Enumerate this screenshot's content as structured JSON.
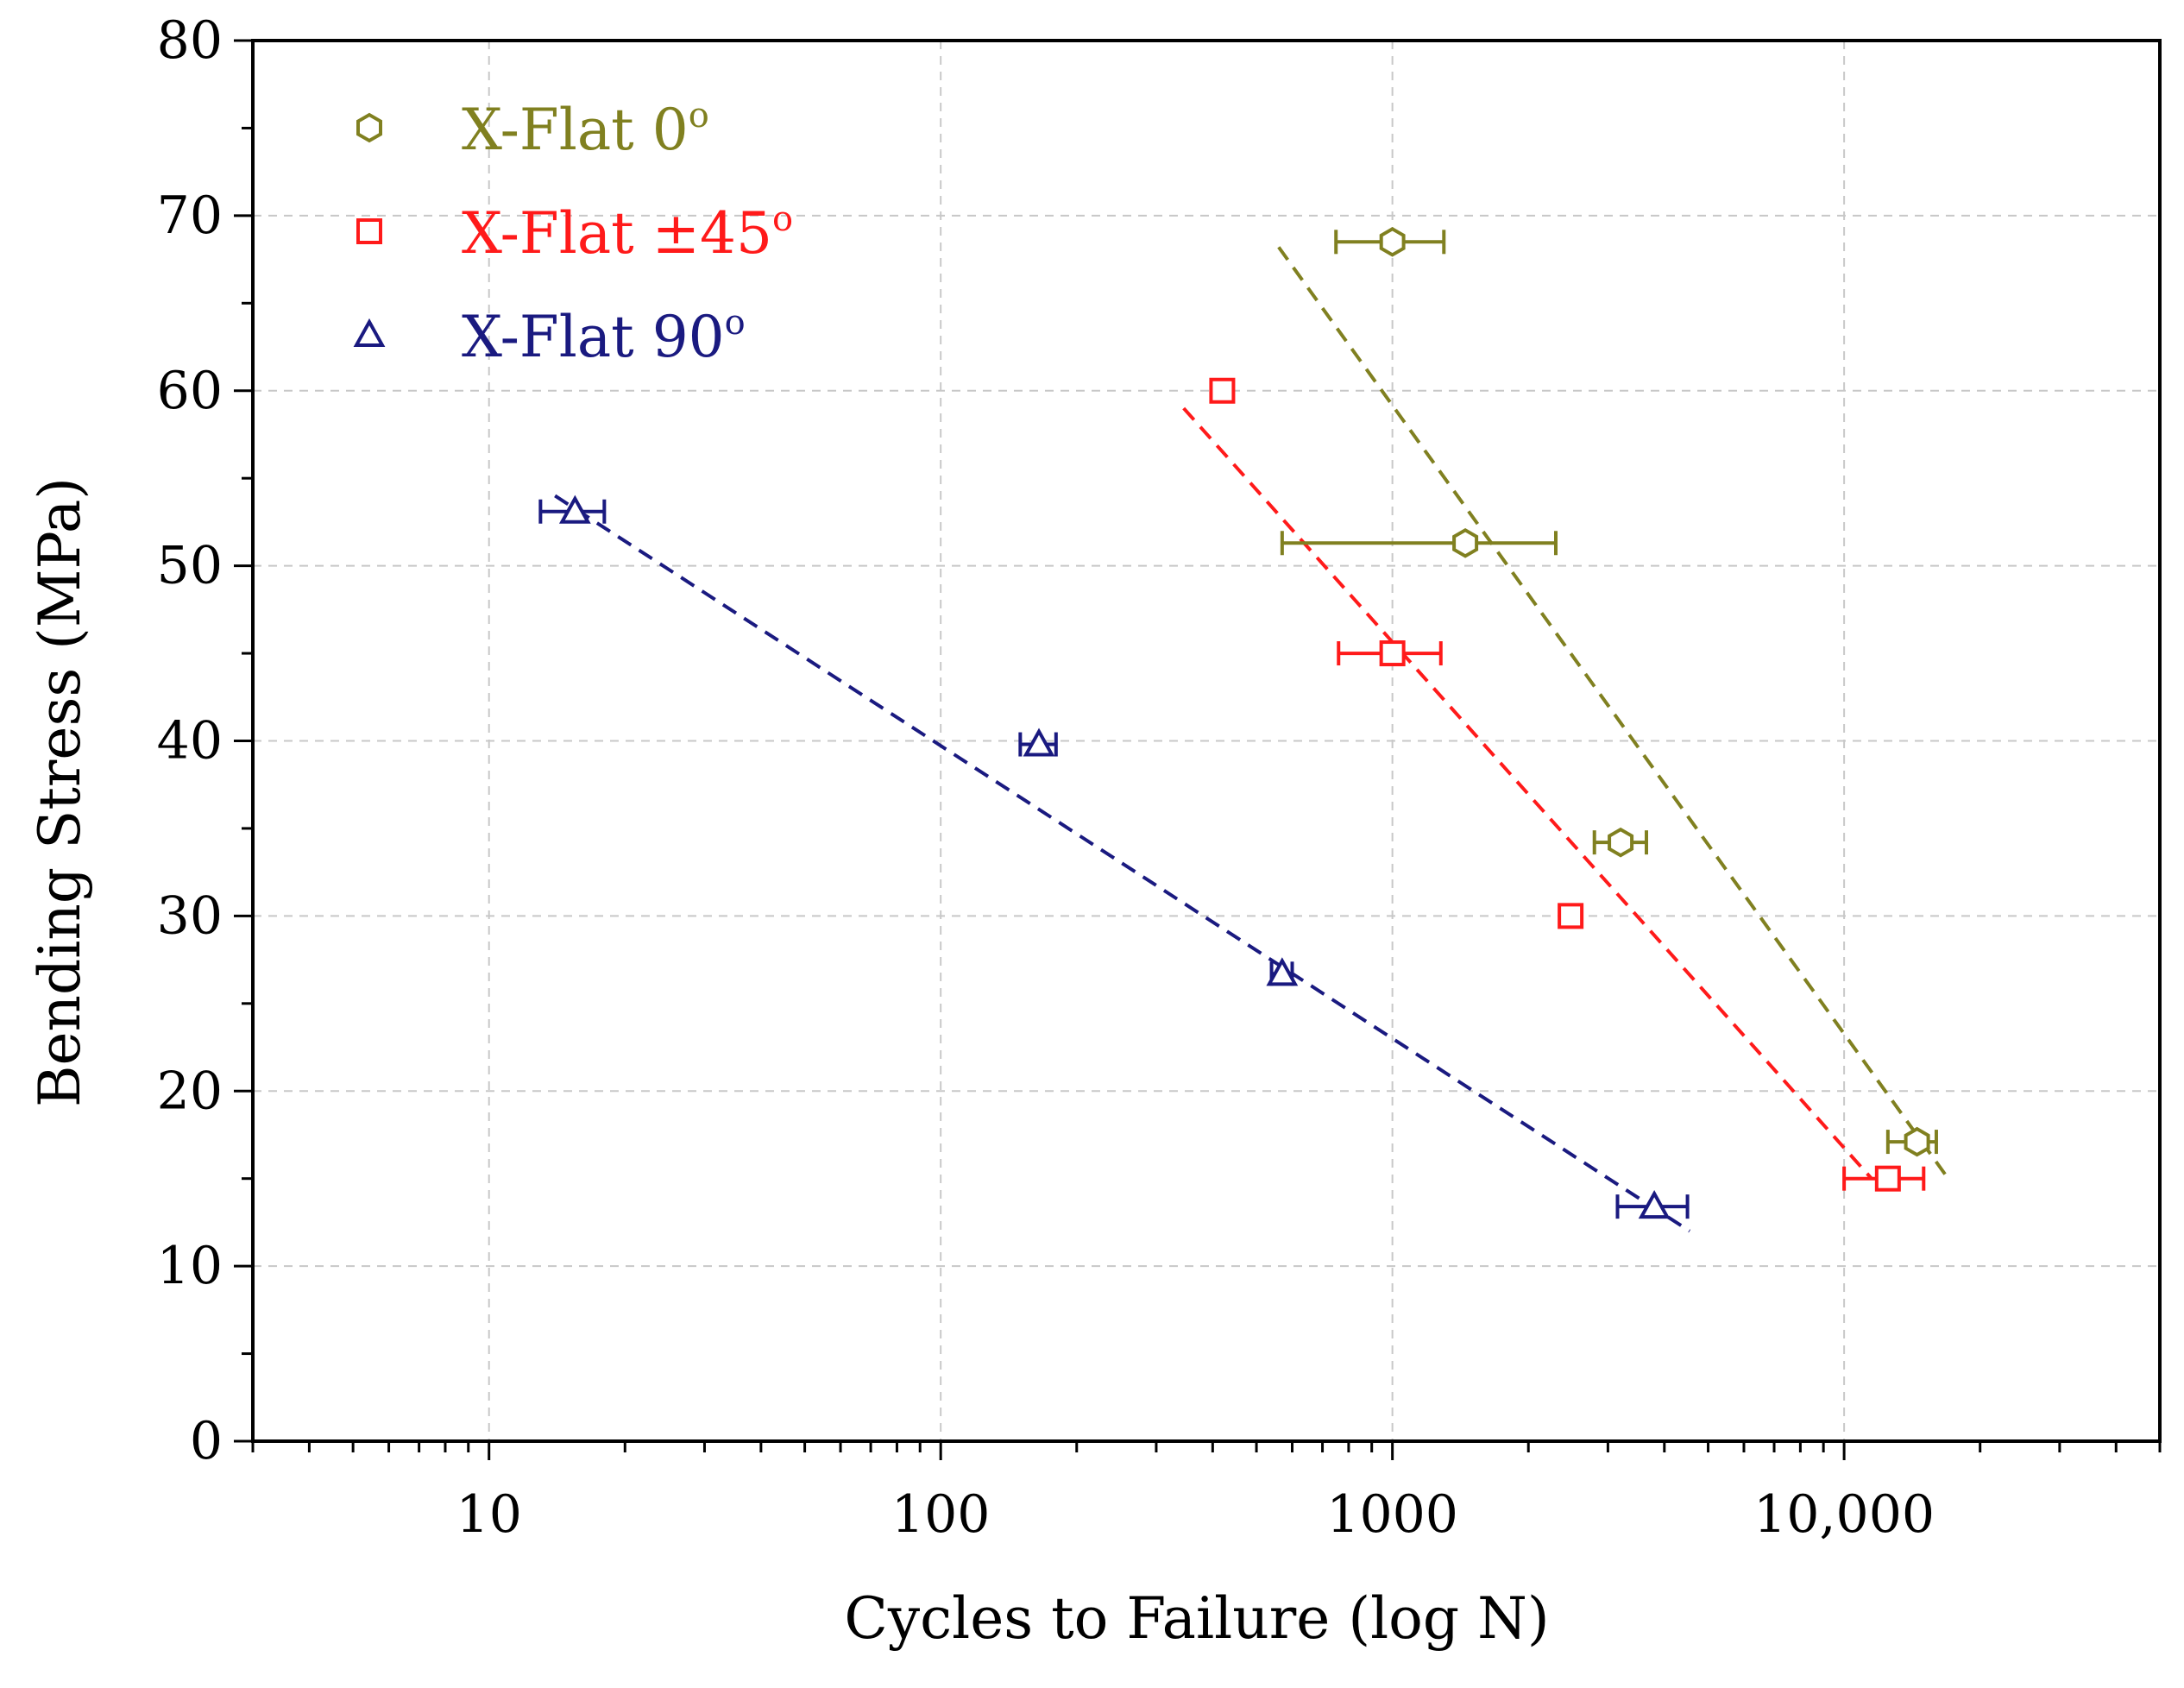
{
  "chart_data": {
    "type": "scatter",
    "title": "",
    "xlabel": "Cycles to Failure (log N)",
    "ylabel": "Bending Stress (MPa)",
    "xscale": "log",
    "xlim": [
      3,
      50000
    ],
    "ylim": [
      0,
      80
    ],
    "grid": true,
    "legend_position": "top-left",
    "x_ticks": [
      {
        "value": 10,
        "label": "10"
      },
      {
        "value": 100,
        "label": "100"
      },
      {
        "value": 1000,
        "label": "1000"
      },
      {
        "value": 10000,
        "label": "10,000"
      }
    ],
    "y_ticks": [
      {
        "value": 0,
        "label": "0"
      },
      {
        "value": 10,
        "label": "10"
      },
      {
        "value": 20,
        "label": "20"
      },
      {
        "value": 30,
        "label": "30"
      },
      {
        "value": 40,
        "label": "40"
      },
      {
        "value": 50,
        "label": "50"
      },
      {
        "value": 60,
        "label": "60"
      },
      {
        "value": 70,
        "label": "70"
      },
      {
        "value": 80,
        "label": "80"
      }
    ],
    "series": [
      {
        "name": "X-Flat 0°",
        "legend_main": "X-Flat 0",
        "legend_sup": "o",
        "marker": "hexagon",
        "color": "#808020",
        "points": [
          {
            "x": 1000,
            "y": 68.5,
            "xerr": [
              750,
              1300
            ]
          },
          {
            "x": 1450,
            "y": 51.3,
            "xerr": [
              570,
              2300
            ]
          },
          {
            "x": 3200,
            "y": 34.2,
            "xerr": [
              2800,
              3650
            ]
          },
          {
            "x": 14500,
            "y": 17.1,
            "xerr": [
              12500,
              16000
            ]
          }
        ],
        "fit": [
          {
            "x": 560,
            "y": 68.2
          },
          {
            "x": 17000,
            "y": 15.0
          }
        ]
      },
      {
        "name": "X-Flat ±45°",
        "legend_main": "X-Flat ±45",
        "legend_sup": "o",
        "marker": "square",
        "color": "#ff1a1a",
        "points": [
          {
            "x": 420,
            "y": 60.0,
            "xerr": [
              405,
              435
            ]
          },
          {
            "x": 1000,
            "y": 45.0,
            "xerr": [
              760,
              1280
            ]
          },
          {
            "x": 2480,
            "y": 30.0,
            "xerr": [
              2400,
              2560
            ]
          },
          {
            "x": 12500,
            "y": 15.0,
            "xerr": [
              10000,
              15000
            ]
          }
        ],
        "fit": [
          {
            "x": 345,
            "y": 59.0
          },
          {
            "x": 11500,
            "y": 15.0
          }
        ]
      },
      {
        "name": "X-Flat 90°",
        "legend_main": "X-Flat 90",
        "legend_sup": "o",
        "marker": "triangle",
        "color": "#1a1a80",
        "points": [
          {
            "x": 15.5,
            "y": 53.1,
            "xerr": [
              13,
              18
            ]
          },
          {
            "x": 165,
            "y": 39.8,
            "xerr": [
              150,
              180
            ]
          },
          {
            "x": 570,
            "y": 26.7,
            "xerr": [
              540,
              600
            ]
          },
          {
            "x": 3800,
            "y": 13.4,
            "xerr": [
              3150,
              4500
            ]
          }
        ],
        "fit": [
          {
            "x": 14,
            "y": 54.0
          },
          {
            "x": 4550,
            "y": 12.0
          }
        ]
      }
    ]
  }
}
